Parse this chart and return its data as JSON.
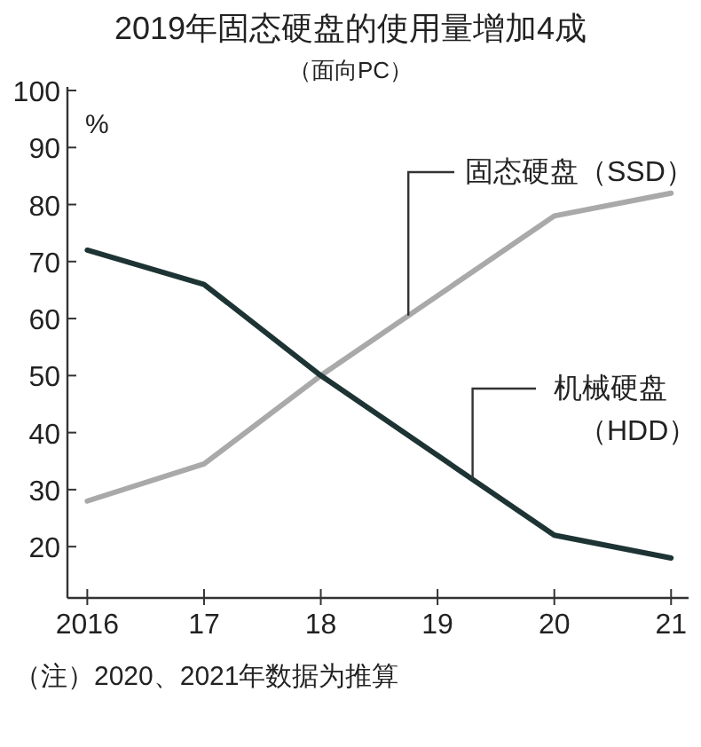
{
  "chart_data": {
    "type": "line",
    "title": "2019年固态硬盘的使用量增加4成",
    "subtitle": "（面向PC）",
    "ylabel": "%",
    "x": [
      2016,
      2017,
      2018,
      2019,
      2020,
      2021
    ],
    "series": [
      {
        "name": "固态硬盘（SSD）",
        "color": "#a9a9a9",
        "values": [
          28,
          34.5,
          50,
          64,
          78,
          82
        ]
      },
      {
        "name": "机械硬盘（HDD）",
        "color": "#1e3434",
        "values": [
          72,
          66,
          50,
          36,
          22,
          18
        ]
      }
    ],
    "xlim": [
      2015.83,
      2021.15
    ],
    "xticks": [
      {
        "value": 2016,
        "label": "2016"
      },
      {
        "value": 2017,
        "label": "17"
      },
      {
        "value": 2018,
        "label": "18"
      },
      {
        "value": 2019,
        "label": "19"
      },
      {
        "value": 2020,
        "label": "20"
      },
      {
        "value": 2021,
        "label": "21"
      }
    ],
    "ylim": [
      11,
      100
    ],
    "yticks": [
      20,
      30,
      40,
      50,
      60,
      70,
      80,
      90,
      100
    ],
    "grid": false,
    "marker": "none",
    "line_style": "solid",
    "annotations": [
      "（注）2020、2021年数据为推算"
    ]
  }
}
